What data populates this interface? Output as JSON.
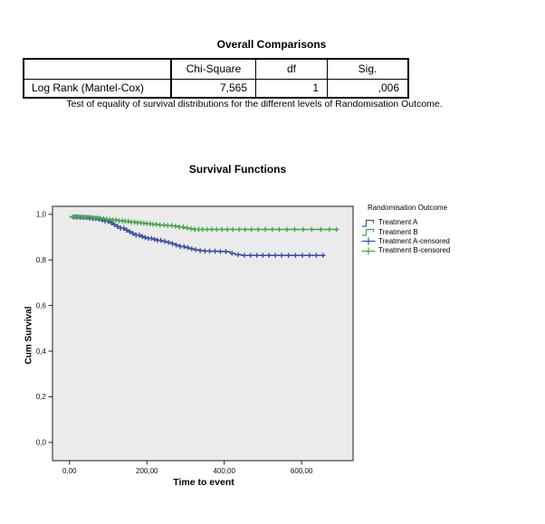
{
  "comparison_table": {
    "title": "Overall Comparisons",
    "columns": [
      "",
      "Chi-Square",
      "df",
      "Sig."
    ],
    "rows": [
      {
        "label": "Log Rank (Mantel-Cox)",
        "chi_square": "7,565",
        "df": "1",
        "sig": ",006"
      }
    ],
    "caption": "Test of equality of survival distributions for the different levels of Randomisation Outcome."
  },
  "chart_data": {
    "type": "line",
    "subtype": "kaplan-meier-step",
    "title": "Survival Functions",
    "xlabel": "Time to event",
    "ylabel": "Cum Survival",
    "xlim": [
      -44,
      733
    ],
    "ylim": [
      -0.08,
      1.035
    ],
    "grid": false,
    "plot_background": "#ebebeb",
    "frame_color": "#404040",
    "legend_position": "right",
    "legend_title": "Randomisation Outcome",
    "x_ticks": [
      {
        "value": 0,
        "label": "0,00"
      },
      {
        "value": 200,
        "label": "200,00"
      },
      {
        "value": 400,
        "label": "400,00"
      },
      {
        "value": 600,
        "label": "600,00"
      }
    ],
    "y_ticks": [
      {
        "value": 0.0,
        "label": "0,0"
      },
      {
        "value": 0.2,
        "label": "0,2"
      },
      {
        "value": 0.4,
        "label": "0,4"
      },
      {
        "value": 0.6,
        "label": "0,6"
      },
      {
        "value": 0.8,
        "label": "0,8"
      },
      {
        "value": 1.0,
        "label": "1,0"
      }
    ],
    "series": [
      {
        "name": "Treatment A",
        "censored_name": "Treatment A-censored",
        "color": "#3e4fa2",
        "points": [
          [
            0,
            0.988
          ],
          [
            25,
            0.986
          ],
          [
            45,
            0.984
          ],
          [
            60,
            0.982
          ],
          [
            72,
            0.979
          ],
          [
            82,
            0.975
          ],
          [
            92,
            0.97
          ],
          [
            102,
            0.963
          ],
          [
            112,
            0.955
          ],
          [
            122,
            0.947
          ],
          [
            132,
            0.939
          ],
          [
            142,
            0.931
          ],
          [
            152,
            0.923
          ],
          [
            162,
            0.916
          ],
          [
            172,
            0.909
          ],
          [
            182,
            0.903
          ],
          [
            192,
            0.898
          ],
          [
            202,
            0.894
          ],
          [
            214,
            0.89
          ],
          [
            226,
            0.886
          ],
          [
            238,
            0.882
          ],
          [
            250,
            0.877
          ],
          [
            262,
            0.871
          ],
          [
            274,
            0.865
          ],
          [
            286,
            0.859
          ],
          [
            298,
            0.854
          ],
          [
            310,
            0.849
          ],
          [
            322,
            0.845
          ],
          [
            334,
            0.841
          ],
          [
            348,
            0.839
          ],
          [
            365,
            0.838
          ],
          [
            385,
            0.837
          ],
          [
            405,
            0.836
          ],
          [
            415,
            0.829
          ],
          [
            428,
            0.823
          ],
          [
            445,
            0.82
          ],
          [
            660,
            0.82
          ]
        ],
        "censored": [
          12,
          20,
          28,
          36,
          44,
          52,
          60,
          68,
          76,
          84,
          92,
          100,
          108,
          116,
          124,
          132,
          140,
          148,
          156,
          164,
          172,
          180,
          188,
          196,
          204,
          212,
          220,
          228,
          236,
          246,
          256,
          266,
          276,
          286,
          296,
          306,
          316,
          326,
          338,
          350,
          362,
          376,
          390,
          404,
          420,
          436,
          452,
          468,
          484,
          500,
          516,
          532,
          548,
          566,
          584,
          602,
          620,
          638,
          655
        ]
      },
      {
        "name": "Treatment B",
        "censored_name": "Treatment B-censored",
        "color": "#44a649",
        "points": [
          [
            0,
            0.989
          ],
          [
            35,
            0.987
          ],
          [
            60,
            0.984
          ],
          [
            80,
            0.981
          ],
          [
            95,
            0.978
          ],
          [
            110,
            0.975
          ],
          [
            125,
            0.972
          ],
          [
            140,
            0.969
          ],
          [
            155,
            0.966
          ],
          [
            170,
            0.963
          ],
          [
            185,
            0.961
          ],
          [
            200,
            0.959
          ],
          [
            215,
            0.956
          ],
          [
            232,
            0.953
          ],
          [
            250,
            0.951
          ],
          [
            268,
            0.948
          ],
          [
            283,
            0.944
          ],
          [
            296,
            0.94
          ],
          [
            308,
            0.937
          ],
          [
            320,
            0.934
          ],
          [
            695,
            0.933
          ]
        ],
        "censored": [
          8,
          16,
          24,
          32,
          40,
          48,
          56,
          64,
          72,
          80,
          88,
          96,
          104,
          112,
          120,
          128,
          136,
          144,
          152,
          160,
          168,
          176,
          184,
          192,
          200,
          208,
          216,
          224,
          234,
          244,
          254,
          264,
          274,
          284,
          294,
          304,
          314,
          324,
          334,
          344,
          356,
          368,
          380,
          394,
          408,
          422,
          438,
          454,
          470,
          488,
          506,
          524,
          542,
          562,
          582,
          604,
          626,
          650,
          672,
          690
        ]
      }
    ]
  }
}
